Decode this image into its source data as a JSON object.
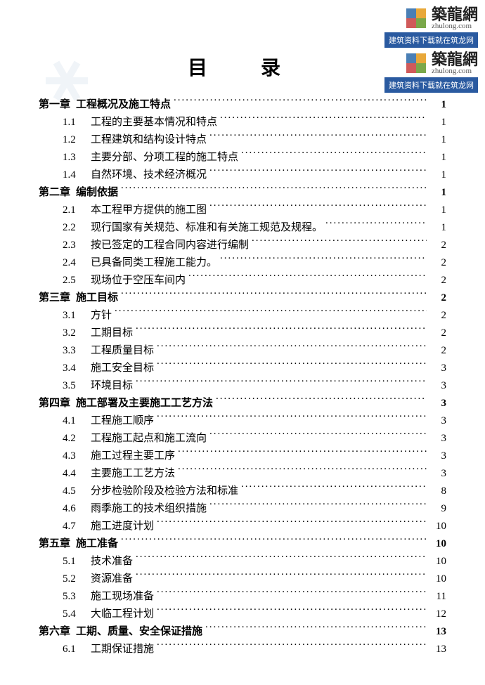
{
  "title": "目　录",
  "watermark": {
    "brand_cn": "築龍網",
    "brand_en": "zhulong.com",
    "bar_text": "建筑资料下载就在筑龙网",
    "logo_colors": [
      "#4a7fb5",
      "#e8a83a",
      "#7aa84a",
      "#d05a5a"
    ],
    "bar_bg": "#2a5aa0"
  },
  "toc": [
    {
      "type": "chapter",
      "num": "第一章",
      "label": "工程概况及施工特点",
      "page": "1"
    },
    {
      "type": "sub",
      "num": "1.1",
      "label": "工程的主要基本情况和特点",
      "page": "1"
    },
    {
      "type": "sub",
      "num": "1.2",
      "label": "工程建筑和结构设计特点",
      "page": "1"
    },
    {
      "type": "sub",
      "num": "1.3",
      "label": "主要分部、分项工程的施工特点",
      "page": "1"
    },
    {
      "type": "sub",
      "num": "1.4",
      "label": "自然环境、技术经济概况",
      "page": "1"
    },
    {
      "type": "chapter",
      "num": "第二章",
      "label": "编制依据",
      "page": "1"
    },
    {
      "type": "sub",
      "num": "2.1",
      "label": "本工程甲方提供的施工图",
      "page": "1"
    },
    {
      "type": "sub",
      "num": "2.2",
      "label": "现行国家有关规范、标准和有关施工规范及规程。",
      "page": "1"
    },
    {
      "type": "sub",
      "num": "2.3",
      "label": "按已签定的工程合同内容进行编制",
      "page": "2"
    },
    {
      "type": "sub",
      "num": "2.4",
      "label": "已具备同类工程施工能力。",
      "page": "2"
    },
    {
      "type": "sub",
      "num": "2.5",
      "label": "现场位于空压车间内",
      "page": "2"
    },
    {
      "type": "chapter",
      "num": "第三章",
      "label": "施工目标",
      "page": "2"
    },
    {
      "type": "sub",
      "num": "3.1",
      "label": "方针",
      "page": "2"
    },
    {
      "type": "sub",
      "num": "3.2",
      "label": "工期目标",
      "page": "2"
    },
    {
      "type": "sub",
      "num": "3.3",
      "label": "工程质量目标",
      "page": "2"
    },
    {
      "type": "sub",
      "num": "3.4",
      "label": "施工安全目标",
      "page": "3"
    },
    {
      "type": "sub",
      "num": "3.5",
      "label": "环境目标",
      "page": "3"
    },
    {
      "type": "chapter",
      "num": "第四章",
      "label": "施工部署及主要施工工艺方法",
      "page": "3"
    },
    {
      "type": "sub",
      "num": "4.1",
      "label": "工程施工顺序",
      "page": "3"
    },
    {
      "type": "sub",
      "num": "4.2",
      "label": "工程施工起点和施工流向",
      "page": "3"
    },
    {
      "type": "sub",
      "num": "4.3",
      "label": "施工过程主要工序",
      "page": "3"
    },
    {
      "type": "sub",
      "num": "4.4",
      "label": "主要施工工艺方法",
      "page": "3"
    },
    {
      "type": "sub",
      "num": "4.5",
      "label": "分步检验阶段及检验方法和标准",
      "page": "8"
    },
    {
      "type": "sub",
      "num": "4.6",
      "label": "雨季施工的技术组织措施",
      "page": "9"
    },
    {
      "type": "sub",
      "num": "4.7",
      "label": "施工进度计划",
      "page": "10"
    },
    {
      "type": "chapter",
      "num": "第五章",
      "label": "施工准备",
      "page": "10"
    },
    {
      "type": "sub",
      "num": "5.1",
      "label": "技术准备",
      "page": "10"
    },
    {
      "type": "sub",
      "num": "5.2",
      "label": "资源准备",
      "page": "10"
    },
    {
      "type": "sub",
      "num": "5.3",
      "label": "施工现场准备",
      "page": "11"
    },
    {
      "type": "sub",
      "num": "5.4",
      "label": "大临工程计划",
      "page": "12"
    },
    {
      "type": "chapter",
      "num": "第六章",
      "label": "工期、质量、安全保证措施",
      "page": "13"
    },
    {
      "type": "sub",
      "num": "6.1",
      "label": "工期保证措施",
      "page": "13"
    }
  ]
}
